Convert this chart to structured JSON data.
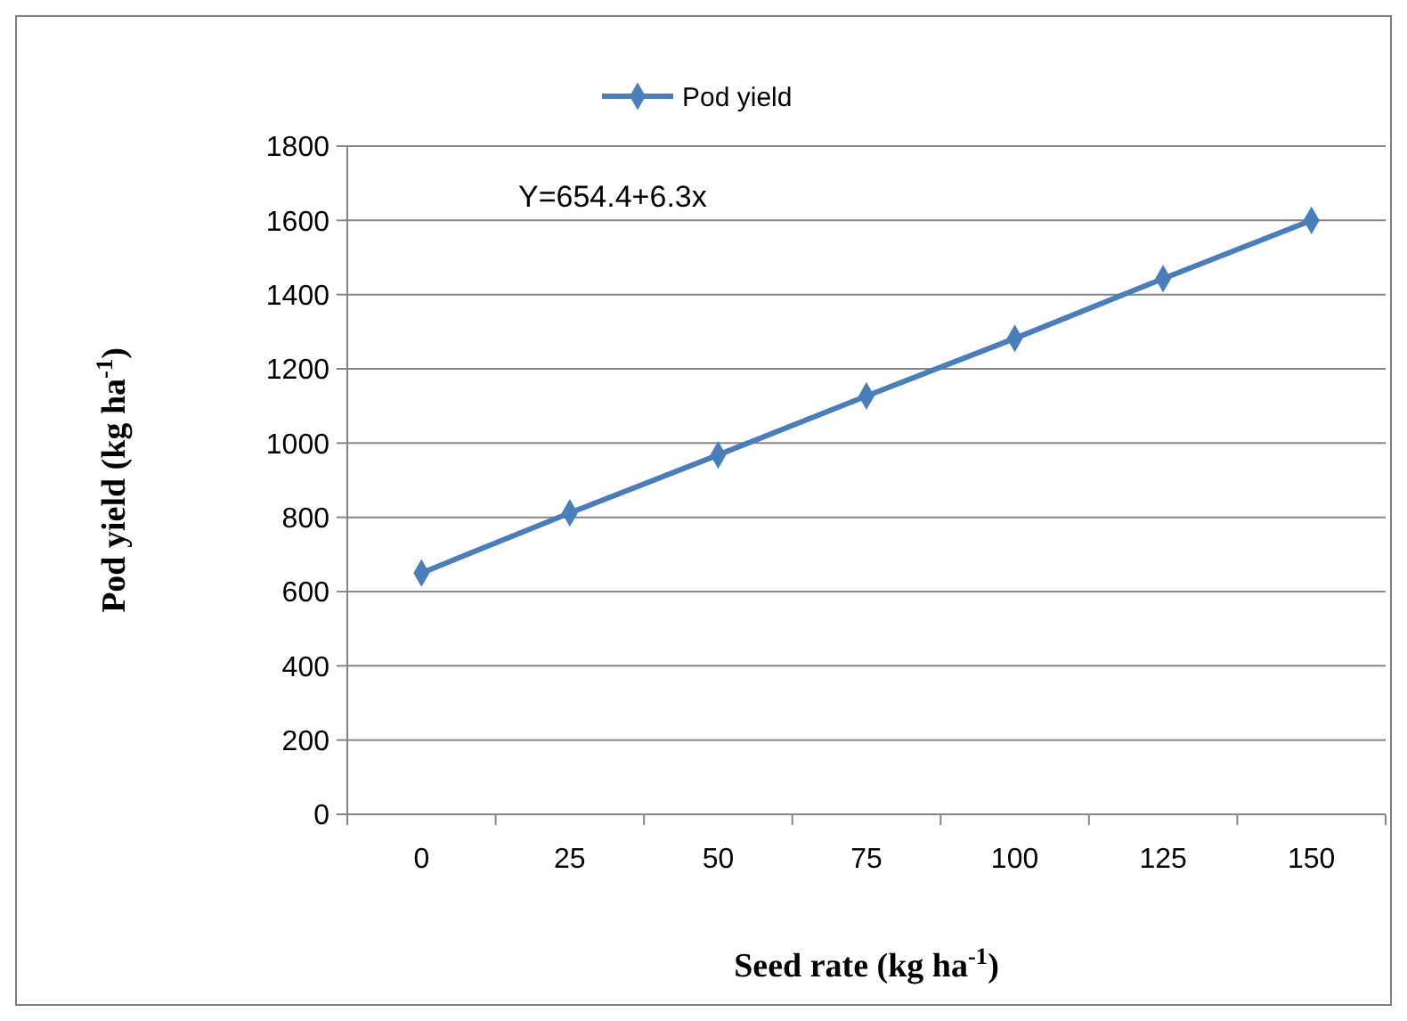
{
  "chart_data": {
    "type": "line",
    "xlabel": "Seed rate (kg ha$^{-1}$)",
    "ylabel": "Pod yield (kg ha$^{-1}$)",
    "categories": [
      "0",
      "25",
      "50",
      "75",
      "100",
      "125",
      "150"
    ],
    "series": [
      {
        "name": "Pod yield",
        "color": "#4a7ebb",
        "values": [
          650,
          812,
          968,
          1127,
          1282,
          1443,
          1600
        ]
      }
    ],
    "ylim": [
      0,
      1800
    ],
    "yticks": [
      0,
      200,
      400,
      600,
      800,
      1000,
      1200,
      1400,
      1600,
      1800
    ],
    "grid": "y",
    "legend": "top",
    "marker": "diamond",
    "line_style": "solid",
    "annotations": [
      "Y=654.4+6.3x"
    ]
  }
}
